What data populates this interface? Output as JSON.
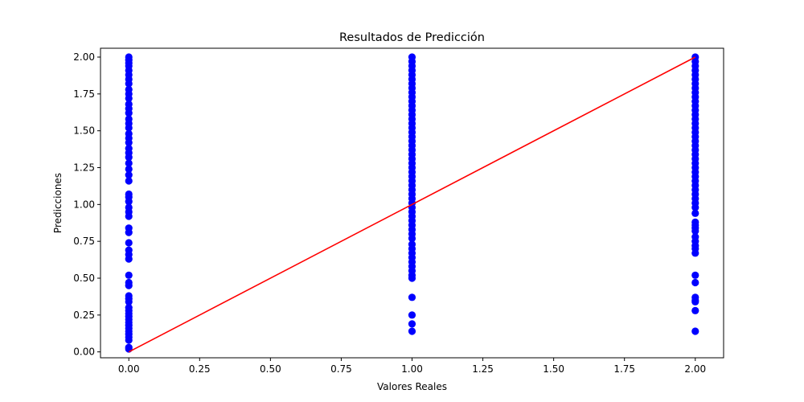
{
  "chart_data": {
    "type": "scatter",
    "title": "Resultados de Predicción",
    "xlabel": "Valores Reales",
    "ylabel": "Predicciones",
    "xlim": [
      -0.1,
      2.1
    ],
    "ylim": [
      -0.04,
      2.06
    ],
    "grid": false,
    "legend": "none",
    "x_ticks": [
      0.0,
      0.25,
      0.5,
      0.75,
      1.0,
      1.25,
      1.5,
      1.75,
      2.0
    ],
    "x_tick_labels": [
      "0.00",
      "0.25",
      "0.50",
      "0.75",
      "1.00",
      "1.25",
      "1.50",
      "1.75",
      "2.00"
    ],
    "y_ticks": [
      0.0,
      0.25,
      0.5,
      0.75,
      1.0,
      1.25,
      1.5,
      1.75,
      2.0
    ],
    "y_tick_labels": [
      "0.00",
      "0.25",
      "0.50",
      "0.75",
      "1.00",
      "1.25",
      "1.50",
      "1.75",
      "2.00"
    ],
    "point_color": "#0000ff",
    "line_color": "#ff0000",
    "reference_line": {
      "x": [
        0,
        2
      ],
      "y": [
        0,
        2
      ]
    },
    "points": [
      {
        "x": 0,
        "y": 2.0
      },
      {
        "x": 0,
        "y": 1.98
      },
      {
        "x": 0,
        "y": 1.96
      },
      {
        "x": 0,
        "y": 1.94
      },
      {
        "x": 0,
        "y": 1.91
      },
      {
        "x": 0,
        "y": 1.88
      },
      {
        "x": 0,
        "y": 1.85
      },
      {
        "x": 0,
        "y": 1.82
      },
      {
        "x": 0,
        "y": 1.78
      },
      {
        "x": 0,
        "y": 1.75
      },
      {
        "x": 0,
        "y": 1.72
      },
      {
        "x": 0,
        "y": 1.68
      },
      {
        "x": 0,
        "y": 1.65
      },
      {
        "x": 0,
        "y": 1.62
      },
      {
        "x": 0,
        "y": 1.58
      },
      {
        "x": 0,
        "y": 1.55
      },
      {
        "x": 0,
        "y": 1.52
      },
      {
        "x": 0,
        "y": 1.48
      },
      {
        "x": 0,
        "y": 1.45
      },
      {
        "x": 0,
        "y": 1.42
      },
      {
        "x": 0,
        "y": 1.38
      },
      {
        "x": 0,
        "y": 1.35
      },
      {
        "x": 0,
        "y": 1.32
      },
      {
        "x": 0,
        "y": 1.28
      },
      {
        "x": 0,
        "y": 1.24
      },
      {
        "x": 0,
        "y": 1.2
      },
      {
        "x": 0,
        "y": 1.16
      },
      {
        "x": 0,
        "y": 1.07
      },
      {
        "x": 0,
        "y": 1.05
      },
      {
        "x": 0,
        "y": 1.02
      },
      {
        "x": 0,
        "y": 0.98
      },
      {
        "x": 0,
        "y": 0.95
      },
      {
        "x": 0,
        "y": 0.92
      },
      {
        "x": 0,
        "y": 0.84
      },
      {
        "x": 0,
        "y": 0.81
      },
      {
        "x": 0,
        "y": 0.74
      },
      {
        "x": 0,
        "y": 0.69
      },
      {
        "x": 0,
        "y": 0.66
      },
      {
        "x": 0,
        "y": 0.63
      },
      {
        "x": 0,
        "y": 0.52
      },
      {
        "x": 0,
        "y": 0.47
      },
      {
        "x": 0,
        "y": 0.45
      },
      {
        "x": 0,
        "y": 0.38
      },
      {
        "x": 0,
        "y": 0.36
      },
      {
        "x": 0,
        "y": 0.34
      },
      {
        "x": 0,
        "y": 0.3
      },
      {
        "x": 0,
        "y": 0.28
      },
      {
        "x": 0,
        "y": 0.26
      },
      {
        "x": 0,
        "y": 0.24
      },
      {
        "x": 0,
        "y": 0.22
      },
      {
        "x": 0,
        "y": 0.2
      },
      {
        "x": 0,
        "y": 0.18
      },
      {
        "x": 0,
        "y": 0.16
      },
      {
        "x": 0,
        "y": 0.14
      },
      {
        "x": 0,
        "y": 0.12
      },
      {
        "x": 0,
        "y": 0.1
      },
      {
        "x": 0,
        "y": 0.08
      },
      {
        "x": 0,
        "y": 0.03
      },
      {
        "x": 0,
        "y": 0.02
      },
      {
        "x": 1,
        "y": 2.0
      },
      {
        "x": 1,
        "y": 1.97
      },
      {
        "x": 1,
        "y": 1.94
      },
      {
        "x": 1,
        "y": 1.91
      },
      {
        "x": 1,
        "y": 1.88
      },
      {
        "x": 1,
        "y": 1.85
      },
      {
        "x": 1,
        "y": 1.82
      },
      {
        "x": 1,
        "y": 1.79
      },
      {
        "x": 1,
        "y": 1.76
      },
      {
        "x": 1,
        "y": 1.73
      },
      {
        "x": 1,
        "y": 1.7
      },
      {
        "x": 1,
        "y": 1.67
      },
      {
        "x": 1,
        "y": 1.64
      },
      {
        "x": 1,
        "y": 1.61
      },
      {
        "x": 1,
        "y": 1.58
      },
      {
        "x": 1,
        "y": 1.55
      },
      {
        "x": 1,
        "y": 1.52
      },
      {
        "x": 1,
        "y": 1.49
      },
      {
        "x": 1,
        "y": 1.46
      },
      {
        "x": 1,
        "y": 1.43
      },
      {
        "x": 1,
        "y": 1.4
      },
      {
        "x": 1,
        "y": 1.37
      },
      {
        "x": 1,
        "y": 1.34
      },
      {
        "x": 1,
        "y": 1.31
      },
      {
        "x": 1,
        "y": 1.28
      },
      {
        "x": 1,
        "y": 1.25
      },
      {
        "x": 1,
        "y": 1.22
      },
      {
        "x": 1,
        "y": 1.19
      },
      {
        "x": 1,
        "y": 1.16
      },
      {
        "x": 1,
        "y": 1.13
      },
      {
        "x": 1,
        "y": 1.1
      },
      {
        "x": 1,
        "y": 1.07
      },
      {
        "x": 1,
        "y": 1.04
      },
      {
        "x": 1,
        "y": 1.01
      },
      {
        "x": 1,
        "y": 0.98
      },
      {
        "x": 1,
        "y": 0.95
      },
      {
        "x": 1,
        "y": 0.92
      },
      {
        "x": 1,
        "y": 0.89
      },
      {
        "x": 1,
        "y": 0.86
      },
      {
        "x": 1,
        "y": 0.83
      },
      {
        "x": 1,
        "y": 0.8
      },
      {
        "x": 1,
        "y": 0.77
      },
      {
        "x": 1,
        "y": 0.73
      },
      {
        "x": 1,
        "y": 0.7
      },
      {
        "x": 1,
        "y": 0.67
      },
      {
        "x": 1,
        "y": 0.64
      },
      {
        "x": 1,
        "y": 0.61
      },
      {
        "x": 1,
        "y": 0.58
      },
      {
        "x": 1,
        "y": 0.55
      },
      {
        "x": 1,
        "y": 0.52
      },
      {
        "x": 1,
        "y": 0.5
      },
      {
        "x": 1,
        "y": 0.37
      },
      {
        "x": 1,
        "y": 0.25
      },
      {
        "x": 1,
        "y": 0.19
      },
      {
        "x": 1,
        "y": 0.14
      },
      {
        "x": 2,
        "y": 2.0
      },
      {
        "x": 2,
        "y": 1.97
      },
      {
        "x": 2,
        "y": 1.94
      },
      {
        "x": 2,
        "y": 1.91
      },
      {
        "x": 2,
        "y": 1.88
      },
      {
        "x": 2,
        "y": 1.85
      },
      {
        "x": 2,
        "y": 1.82
      },
      {
        "x": 2,
        "y": 1.79
      },
      {
        "x": 2,
        "y": 1.76
      },
      {
        "x": 2,
        "y": 1.73
      },
      {
        "x": 2,
        "y": 1.7
      },
      {
        "x": 2,
        "y": 1.67
      },
      {
        "x": 2,
        "y": 1.64
      },
      {
        "x": 2,
        "y": 1.61
      },
      {
        "x": 2,
        "y": 1.58
      },
      {
        "x": 2,
        "y": 1.55
      },
      {
        "x": 2,
        "y": 1.52
      },
      {
        "x": 2,
        "y": 1.49
      },
      {
        "x": 2,
        "y": 1.46
      },
      {
        "x": 2,
        "y": 1.43
      },
      {
        "x": 2,
        "y": 1.4
      },
      {
        "x": 2,
        "y": 1.37
      },
      {
        "x": 2,
        "y": 1.34
      },
      {
        "x": 2,
        "y": 1.31
      },
      {
        "x": 2,
        "y": 1.28
      },
      {
        "x": 2,
        "y": 1.25
      },
      {
        "x": 2,
        "y": 1.22
      },
      {
        "x": 2,
        "y": 1.19
      },
      {
        "x": 2,
        "y": 1.16
      },
      {
        "x": 2,
        "y": 1.13
      },
      {
        "x": 2,
        "y": 1.1
      },
      {
        "x": 2,
        "y": 1.07
      },
      {
        "x": 2,
        "y": 1.04
      },
      {
        "x": 2,
        "y": 1.01
      },
      {
        "x": 2,
        "y": 0.98
      },
      {
        "x": 2,
        "y": 0.94
      },
      {
        "x": 2,
        "y": 0.88
      },
      {
        "x": 2,
        "y": 0.86
      },
      {
        "x": 2,
        "y": 0.84
      },
      {
        "x": 2,
        "y": 0.82
      },
      {
        "x": 2,
        "y": 0.78
      },
      {
        "x": 2,
        "y": 0.75
      },
      {
        "x": 2,
        "y": 0.72
      },
      {
        "x": 2,
        "y": 0.7
      },
      {
        "x": 2,
        "y": 0.67
      },
      {
        "x": 2,
        "y": 0.52
      },
      {
        "x": 2,
        "y": 0.47
      },
      {
        "x": 2,
        "y": 0.37
      },
      {
        "x": 2,
        "y": 0.35
      },
      {
        "x": 2,
        "y": 0.34
      },
      {
        "x": 2,
        "y": 0.28
      },
      {
        "x": 2,
        "y": 0.14
      }
    ]
  }
}
